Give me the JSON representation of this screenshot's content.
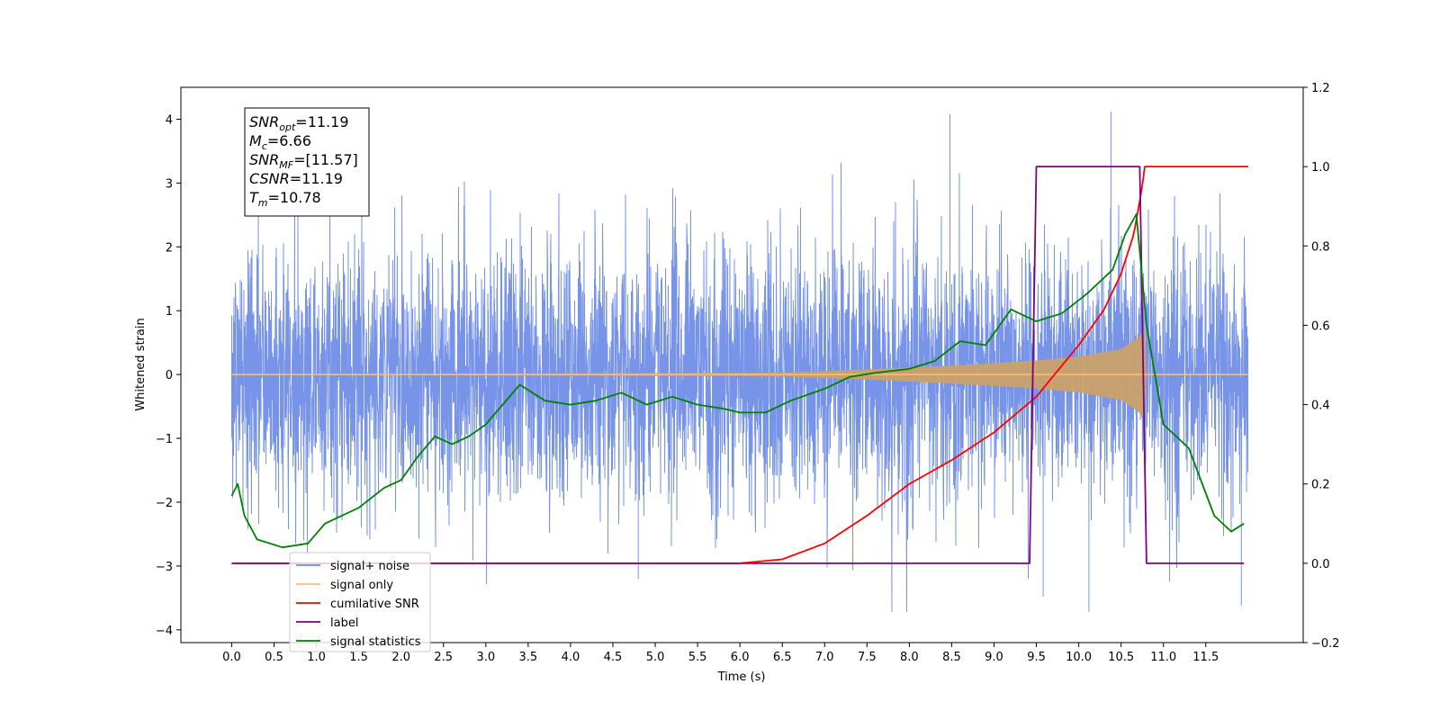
{
  "chart_data": {
    "type": "line",
    "title": "",
    "xlabel": "Time (s)",
    "ylabel": "Whitened strain",
    "xlim": [
      -0.6,
      12.65
    ],
    "ylim_left": [
      -4.2,
      4.5
    ],
    "ylim_right": [
      -0.2,
      1.2
    ],
    "x_ticks": [
      "0.0",
      "0.5",
      "1.0",
      "1.5",
      "2.0",
      "2.5",
      "3.0",
      "3.5",
      "4.0",
      "4.5",
      "5.0",
      "5.5",
      "6.0",
      "6.5",
      "7.0",
      "7.5",
      "8.0",
      "8.5",
      "9.0",
      "9.5",
      "10.0",
      "10.5",
      "11.0",
      "11.5"
    ],
    "y_ticks_left": [
      "4",
      "3",
      "2",
      "1",
      "0",
      "−1",
      "−2",
      "−3",
      "−4"
    ],
    "y_ticks_right": [
      "1.2",
      "1.0",
      "0.8",
      "0.6",
      "0.4",
      "0.2",
      "0.0",
      "−0.2"
    ],
    "grid": false,
    "legend_position": "bottom-left",
    "annotation_box": {
      "lines": [
        {
          "base": "SNR",
          "sub": "opt",
          "rest": "=11.19"
        },
        {
          "base": "M",
          "sub": "c",
          "rest": "=6.66"
        },
        {
          "base": "SNR",
          "sub": "MF",
          "rest": "=[11.57]"
        },
        {
          "base": "CSNR",
          "sub": "",
          "rest": "=11.19"
        },
        {
          "base": "T",
          "sub": "m",
          "rest": "=10.78"
        }
      ]
    },
    "legend": [
      {
        "name": "signal+ noise",
        "color": "#6b8be6"
      },
      {
        "name": "signal only",
        "color": "#ffbf70"
      },
      {
        "name": "cumilative SNR",
        "color": "#ff0000"
      },
      {
        "name": "label",
        "color": "#800080"
      },
      {
        "name": "signal statistics",
        "color": "#008000"
      }
    ],
    "series": [
      {
        "name": "signal+ noise",
        "axis": "left",
        "kind": "noise",
        "t_range": [
          0.0,
          12.0
        ],
        "band_std": 1.0,
        "peak_extremes": {
          "max": 4.12,
          "min": -3.72
        }
      },
      {
        "name": "signal only",
        "axis": "left",
        "kind": "chirp",
        "t_range": [
          0.0,
          12.0
        ],
        "merger_time": 10.78,
        "envelope": {
          "t": [
            0.0,
            6.5,
            7.5,
            8.5,
            9.5,
            10.0,
            10.5,
            10.7,
            10.78,
            10.8
          ],
          "amp": [
            0.0,
            0.03,
            0.08,
            0.14,
            0.22,
            0.28,
            0.4,
            0.58,
            0.7,
            0.0
          ]
        }
      },
      {
        "name": "cumilative SNR",
        "axis": "right",
        "x": [
          0.0,
          6.0,
          6.5,
          7.0,
          7.5,
          8.0,
          8.5,
          9.0,
          9.5,
          10.0,
          10.3,
          10.5,
          10.65,
          10.75,
          10.78,
          12.0
        ],
        "y": [
          0.0,
          0.0,
          0.01,
          0.05,
          0.12,
          0.2,
          0.26,
          0.33,
          0.42,
          0.55,
          0.64,
          0.73,
          0.83,
          0.95,
          1.0,
          1.0
        ]
      },
      {
        "name": "label",
        "axis": "right",
        "x": [
          0.0,
          9.42,
          9.5,
          10.72,
          10.8,
          11.95
        ],
        "y": [
          0.0,
          0.0,
          1.0,
          1.0,
          0.0,
          0.0
        ]
      },
      {
        "name": "signal statistics",
        "axis": "right",
        "x": [
          0.0,
          0.07,
          0.15,
          0.3,
          0.6,
          0.9,
          1.1,
          1.5,
          1.8,
          2.0,
          2.2,
          2.4,
          2.6,
          2.8,
          3.0,
          3.2,
          3.4,
          3.7,
          4.0,
          4.3,
          4.6,
          4.9,
          5.2,
          5.5,
          5.8,
          6.0,
          6.3,
          6.6,
          7.0,
          7.3,
          7.6,
          8.0,
          8.3,
          8.6,
          8.9,
          9.2,
          9.5,
          9.8,
          10.1,
          10.4,
          10.55,
          10.68,
          10.8,
          11.0,
          11.3,
          11.6,
          11.8,
          11.95
        ],
        "y": [
          0.17,
          0.2,
          0.12,
          0.06,
          0.04,
          0.05,
          0.1,
          0.14,
          0.19,
          0.21,
          0.27,
          0.32,
          0.3,
          0.32,
          0.35,
          0.4,
          0.45,
          0.41,
          0.4,
          0.41,
          0.43,
          0.4,
          0.42,
          0.4,
          0.39,
          0.38,
          0.38,
          0.41,
          0.44,
          0.47,
          0.48,
          0.49,
          0.51,
          0.56,
          0.55,
          0.64,
          0.61,
          0.63,
          0.68,
          0.74,
          0.83,
          0.88,
          0.6,
          0.35,
          0.29,
          0.12,
          0.08,
          0.1
        ]
      }
    ]
  }
}
